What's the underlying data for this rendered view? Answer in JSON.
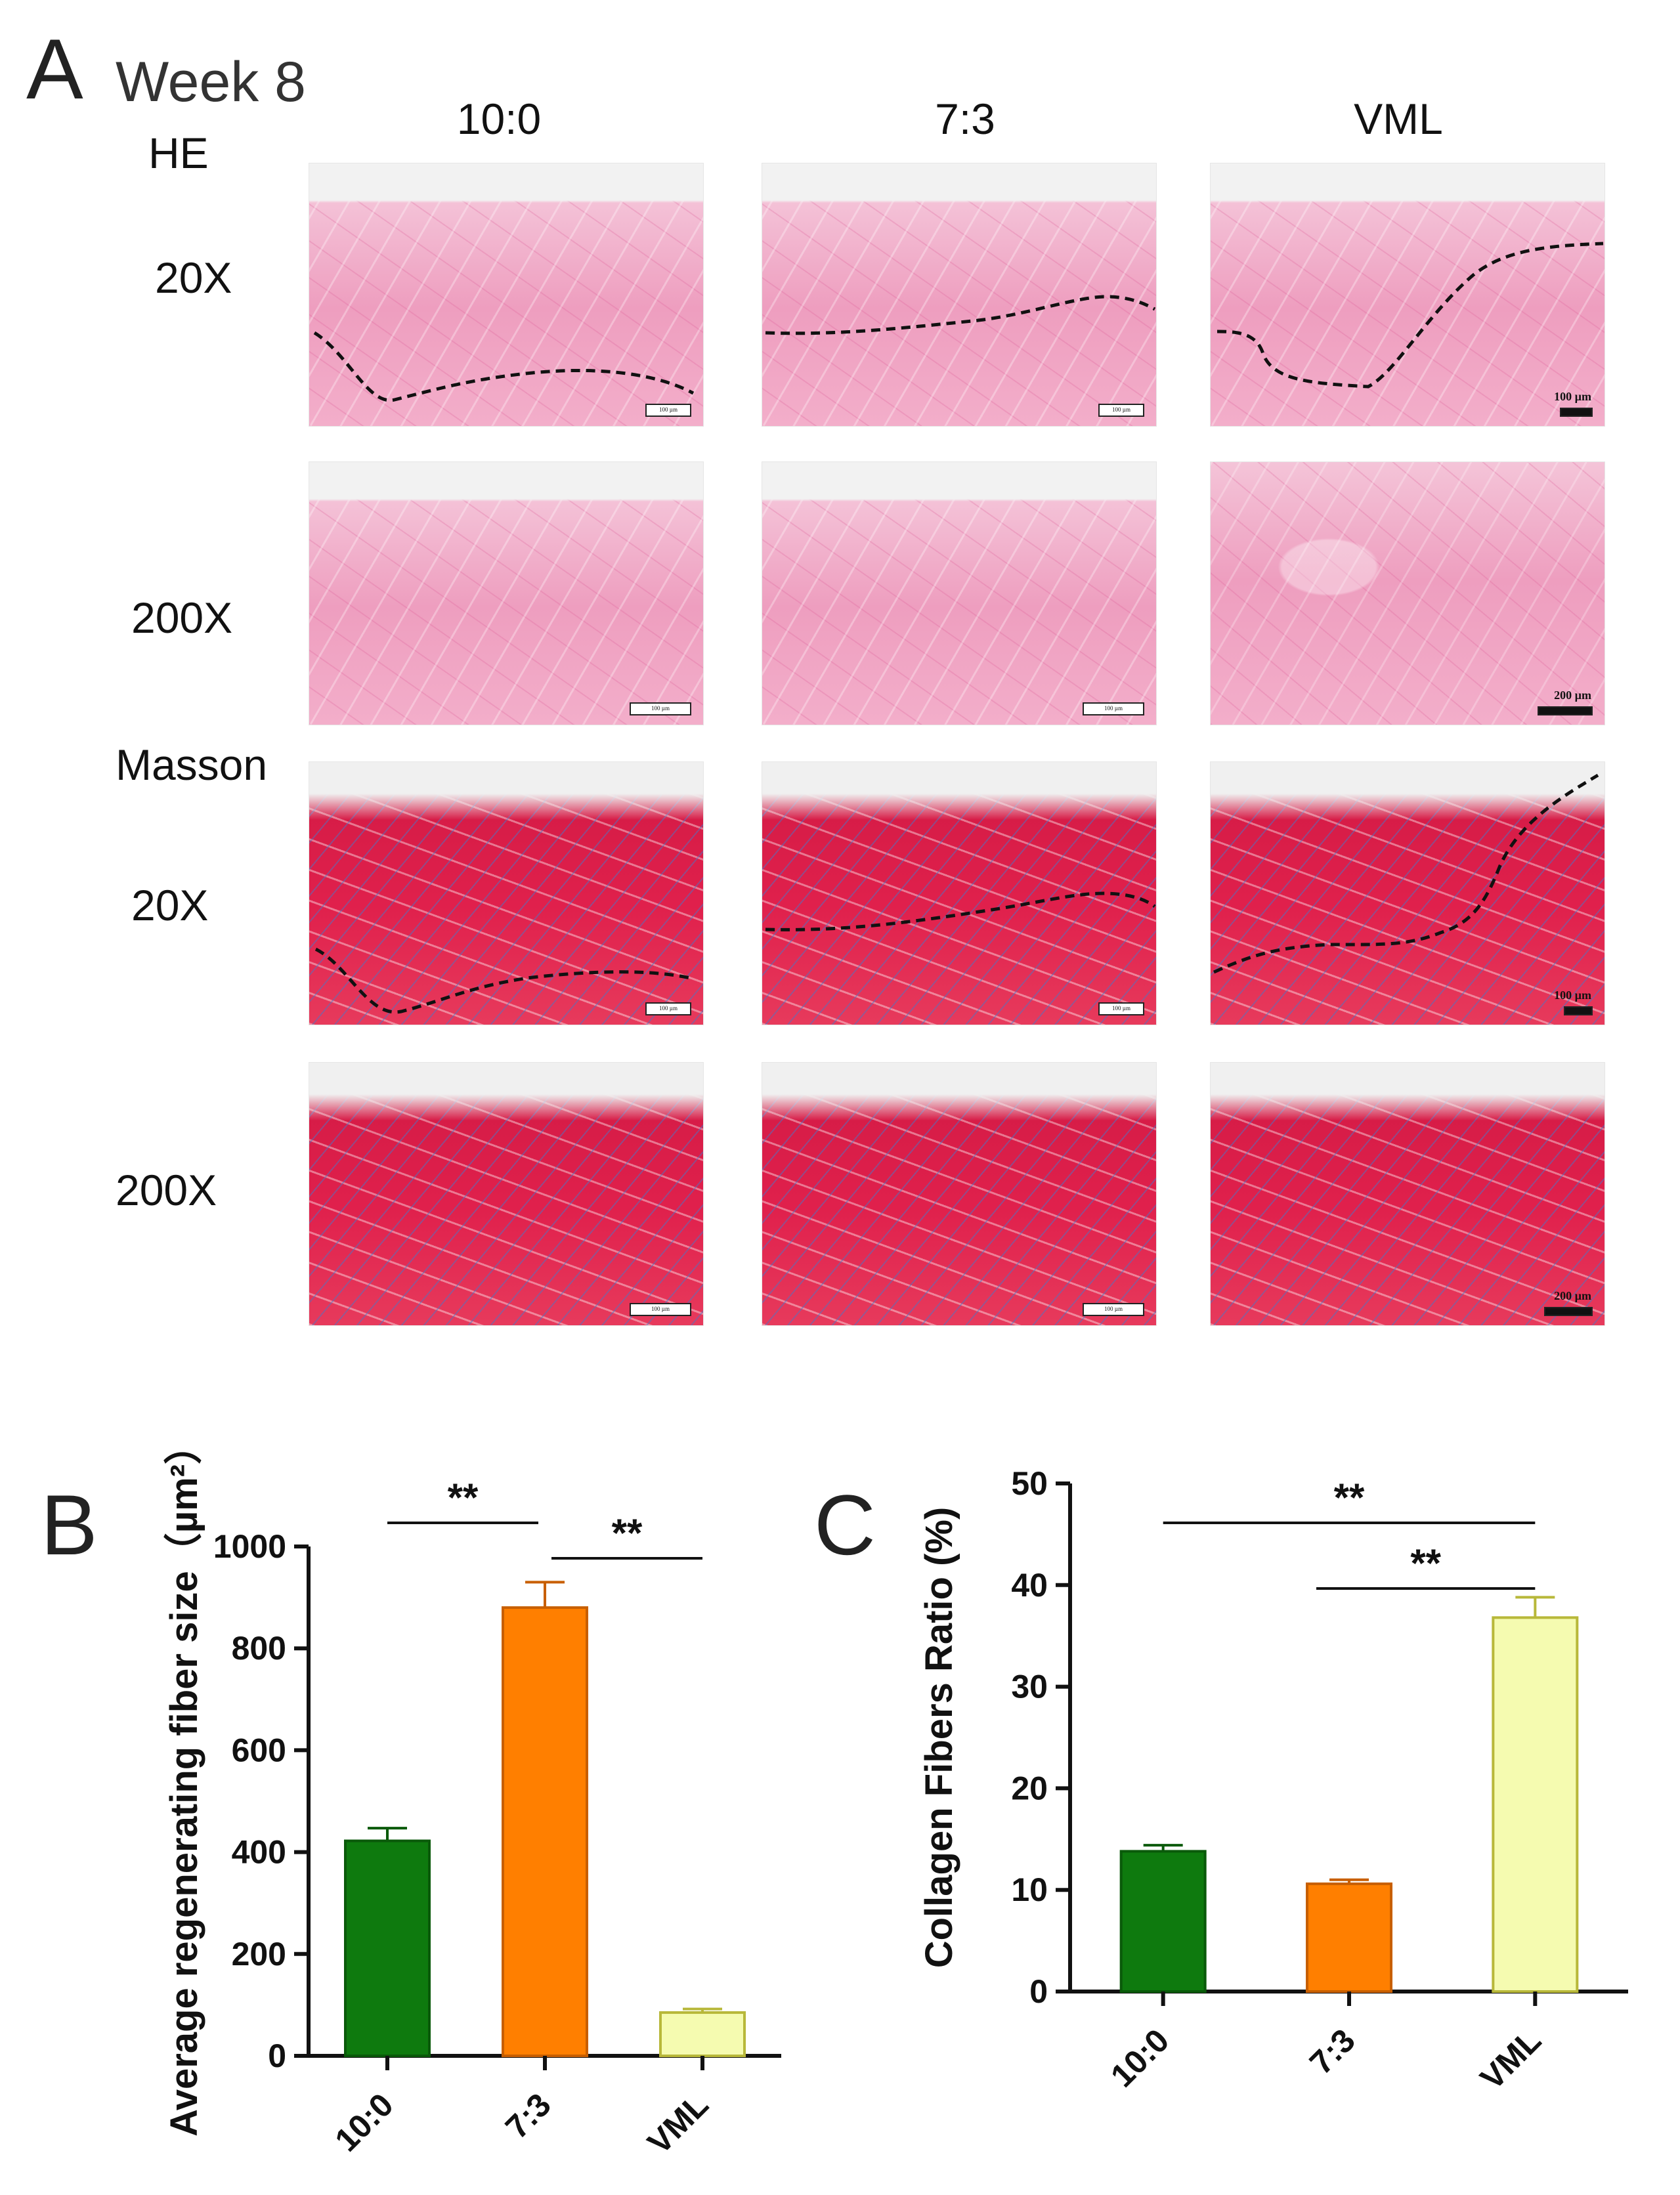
{
  "figure": {
    "panel_a": {
      "letter": "A",
      "week": "Week 8",
      "columns": [
        "10:0",
        "7:3",
        "VML"
      ],
      "stain_he": "HE",
      "stain_masson": "Masson",
      "mag_low": "20X",
      "mag_high": "200X",
      "scale_100": "100 µm",
      "scale_200": "200 µm"
    },
    "panel_b": {
      "letter": "B"
    },
    "panel_c": {
      "letter": "C"
    }
  },
  "chart_data": [
    {
      "type": "bar",
      "ylabel": "Average regenerating fiber size（µm²）",
      "xlabel": "",
      "categories": [
        "10:0",
        "7:3",
        "VML"
      ],
      "values": [
        422,
        880,
        85
      ],
      "errors": [
        25,
        50,
        7
      ],
      "colors": [
        "#0e7a0e",
        "#ff7f00",
        "#f5fbb0"
      ],
      "edge_colors": [
        "#0a5a0a",
        "#c85f00",
        "#b8b83a"
      ],
      "ylim": [
        0,
        1000
      ],
      "yticks": [
        0,
        200,
        400,
        600,
        800,
        1000
      ],
      "significance": [
        {
          "from": 0,
          "to": 1,
          "label": "**"
        },
        {
          "from": 1,
          "to": 2,
          "label": "**"
        }
      ]
    },
    {
      "type": "bar",
      "ylabel": "Collagen Fibers Ratio (%)",
      "xlabel": "",
      "categories": [
        "10:0",
        "7:3",
        "VML"
      ],
      "values": [
        13.8,
        10.6,
        36.8
      ],
      "errors": [
        0.6,
        0.4,
        2.0
      ],
      "colors": [
        "#0e7a0e",
        "#ff7f00",
        "#f5fbb0"
      ],
      "edge_colors": [
        "#0a5a0a",
        "#c85f00",
        "#b8b83a"
      ],
      "ylim": [
        0,
        50
      ],
      "yticks": [
        0,
        10,
        20,
        30,
        40,
        50
      ],
      "significance": [
        {
          "from": 0,
          "to": 2,
          "label": "**"
        },
        {
          "from": 1,
          "to": 2,
          "label": "**"
        }
      ]
    }
  ]
}
